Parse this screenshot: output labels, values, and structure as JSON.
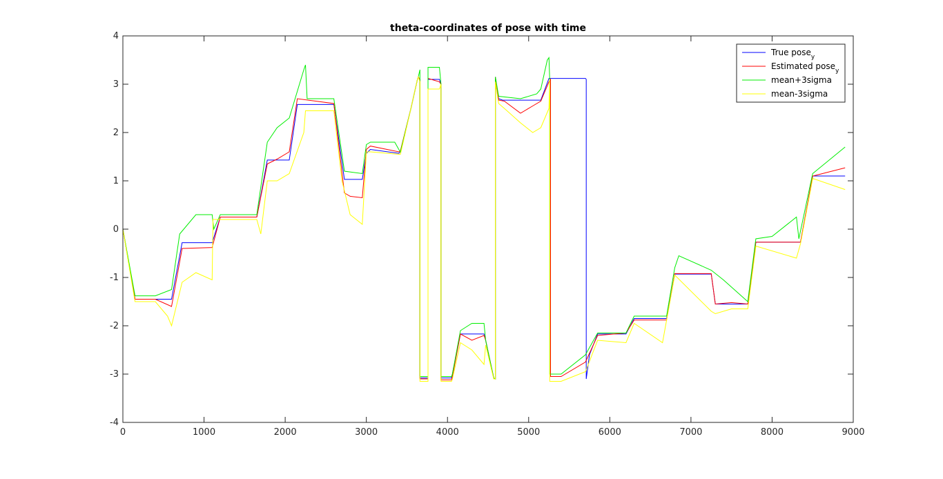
{
  "chart_data": {
    "type": "line",
    "title": "theta-coordinates of pose with time",
    "xlabel": "",
    "ylabel": "",
    "xlim": [
      0,
      9000
    ],
    "ylim": [
      -4,
      4
    ],
    "xticks": [
      0,
      1000,
      2000,
      3000,
      4000,
      5000,
      6000,
      7000,
      8000,
      9000
    ],
    "xtick_labels": [
      "0",
      "1000",
      "2000",
      "3000",
      "4000",
      "5000",
      "6000",
      "7000",
      "8000",
      "9000"
    ],
    "yticks": [
      -4,
      -3,
      -2,
      -1,
      0,
      1,
      2,
      3,
      4
    ],
    "ytick_labels": [
      "-4",
      "-3",
      "-2",
      "-1",
      "0",
      "1",
      "2",
      "3",
      "4"
    ],
    "grid": false,
    "legend_position": "top-right",
    "series": [
      {
        "name": "True pose",
        "name_sub": "y",
        "color": "#0000ff",
        "x": [
          0,
          150,
          600,
          730,
          1100,
          1200,
          1650,
          1780,
          2050,
          2150,
          2600,
          2730,
          2950,
          3000,
          3050,
          3400,
          3420,
          3550,
          3630,
          3640,
          3660,
          3660,
          3760,
          3760,
          3900,
          3920,
          3920,
          4050,
          4060,
          4160,
          4450,
          4470,
          4570,
          4590,
          4590,
          4630,
          4680,
          5150,
          5250,
          5700,
          5710,
          5710,
          5750,
          5850,
          6200,
          6300,
          6700,
          6800,
          7250,
          7300,
          7700,
          7800,
          8300,
          8350,
          8500,
          8550,
          8900
        ],
        "y": [
          0,
          -1.45,
          -1.45,
          -0.28,
          -0.28,
          0.25,
          0.25,
          1.43,
          1.43,
          2.58,
          2.58,
          1.03,
          1.03,
          1.57,
          1.65,
          1.57,
          1.6,
          2.5,
          3.1,
          3.15,
          3.1,
          -3.08,
          -3.08,
          3.1,
          3.1,
          3.0,
          -3.08,
          -3.08,
          -3.0,
          -2.17,
          -2.17,
          -2.3,
          -3.08,
          -3.1,
          3.15,
          2.7,
          2.67,
          2.67,
          3.12,
          3.12,
          3.1,
          -3.1,
          -2.6,
          -2.17,
          -2.17,
          -1.85,
          -1.85,
          -0.93,
          -0.93,
          -1.55,
          -1.55,
          -0.27,
          -0.27,
          -0.27,
          1.1,
          1.1,
          1.1
        ]
      },
      {
        "name": "Estimated pose",
        "name_sub": "y",
        "color": "#ff0000",
        "x": [
          0,
          150,
          400,
          600,
          730,
          1100,
          1200,
          1650,
          1780,
          1900,
          2050,
          2150,
          2600,
          2730,
          2800,
          2950,
          3000,
          3050,
          3400,
          3420,
          3550,
          3630,
          3640,
          3660,
          3660,
          3760,
          3760,
          3900,
          3920,
          3920,
          4050,
          4060,
          4160,
          4300,
          4450,
          4470,
          4570,
          4590,
          4590,
          4630,
          4700,
          4900,
          5050,
          5150,
          5250,
          5270,
          5270,
          5400,
          5700,
          5850,
          6200,
          6300,
          6700,
          6800,
          7250,
          7300,
          7500,
          7700,
          7800,
          8300,
          8350,
          8500,
          8550,
          8900
        ],
        "y": [
          0,
          -1.45,
          -1.45,
          -1.6,
          -0.4,
          -0.38,
          0.25,
          0.25,
          1.35,
          1.45,
          1.6,
          2.7,
          2.6,
          0.75,
          0.68,
          0.65,
          1.65,
          1.72,
          1.6,
          1.62,
          2.5,
          3.1,
          3.15,
          3.1,
          -3.1,
          -3.1,
          3.12,
          3.05,
          3.0,
          -3.12,
          -3.12,
          -3.05,
          -2.17,
          -2.3,
          -2.2,
          -2.3,
          -3.08,
          -3.1,
          3.15,
          2.67,
          2.65,
          2.4,
          2.55,
          2.65,
          3.05,
          3.1,
          -3.05,
          -3.05,
          -2.75,
          -2.2,
          -2.15,
          -1.88,
          -1.88,
          -0.92,
          -0.92,
          -1.55,
          -1.52,
          -1.55,
          -0.27,
          -0.27,
          -0.27,
          1.1,
          1.12,
          1.27
        ]
      },
      {
        "name": "mean+3sigma",
        "color": "#00ee00",
        "x": [
          0,
          150,
          400,
          600,
          700,
          900,
          1100,
          1120,
          1200,
          1650,
          1780,
          1900,
          2050,
          2230,
          2250,
          2270,
          2600,
          2730,
          2950,
          3000,
          3050,
          3350,
          3400,
          3420,
          3550,
          3630,
          3640,
          3660,
          3660,
          3760,
          3760,
          3900,
          3920,
          3920,
          4050,
          4060,
          4160,
          4300,
          4450,
          4470,
          4570,
          4590,
          4590,
          4630,
          4900,
          5100,
          5150,
          5230,
          5250,
          5260,
          5260,
          5400,
          5700,
          5850,
          6200,
          6300,
          6700,
          6800,
          6850,
          7250,
          7400,
          7700,
          7800,
          8000,
          8300,
          8330,
          8500,
          8900
        ],
        "y": [
          0,
          -1.38,
          -1.38,
          -1.25,
          -0.1,
          0.3,
          0.3,
          0,
          0.3,
          0.3,
          1.8,
          2.1,
          2.3,
          3.3,
          3.4,
          2.7,
          2.7,
          1.2,
          1.15,
          1.75,
          1.8,
          1.8,
          1.65,
          1.6,
          2.5,
          3.1,
          3.15,
          3.3,
          -3.05,
          -3.05,
          3.35,
          3.35,
          3.0,
          -3.05,
          -3.05,
          -3.0,
          -2.1,
          -1.95,
          -1.95,
          -2.3,
          -3.08,
          -3.1,
          3.15,
          2.75,
          2.7,
          2.8,
          2.9,
          3.5,
          3.55,
          3.1,
          -3.0,
          -3.0,
          -2.6,
          -2.15,
          -2.15,
          -1.8,
          -1.8,
          -0.8,
          -0.55,
          -0.85,
          -1.05,
          -1.5,
          -0.2,
          -0.15,
          0.25,
          -0.2,
          1.15,
          1.7
        ]
      },
      {
        "name": "mean-3sigma",
        "color": "#ffff00",
        "x": [
          0,
          150,
          400,
          550,
          600,
          730,
          900,
          1100,
          1110,
          1200,
          1650,
          1700,
          1780,
          1900,
          2050,
          2230,
          2250,
          2270,
          2600,
          2700,
          2800,
          2950,
          3000,
          3050,
          3400,
          3420,
          3550,
          3630,
          3640,
          3660,
          3660,
          3760,
          3760,
          3900,
          3920,
          3920,
          4050,
          4060,
          4160,
          4300,
          4450,
          4470,
          4570,
          4590,
          4590,
          4630,
          4700,
          4900,
          5050,
          5150,
          5250,
          5260,
          5260,
          5400,
          5700,
          5850,
          6200,
          6300,
          6650,
          6800,
          7250,
          7300,
          7500,
          7700,
          7800,
          8300,
          8350,
          8500,
          8900
        ],
        "y": [
          0,
          -1.5,
          -1.5,
          -1.8,
          -2.0,
          -1.1,
          -0.9,
          -1.05,
          0.2,
          0.2,
          0.2,
          -0.1,
          1.0,
          1.0,
          1.15,
          2.0,
          2.45,
          2.45,
          2.45,
          1.0,
          0.3,
          0.1,
          1.6,
          1.6,
          1.55,
          1.55,
          2.5,
          3.1,
          3.15,
          3.05,
          -3.15,
          -3.15,
          2.9,
          2.9,
          3.0,
          -3.15,
          -3.15,
          -3.1,
          -2.35,
          -2.5,
          -2.8,
          -2.4,
          -3.1,
          -3.1,
          3.05,
          2.6,
          2.5,
          2.2,
          2.0,
          2.1,
          2.5,
          3.1,
          -3.15,
          -3.15,
          -2.95,
          -2.3,
          -2.35,
          -1.95,
          -2.35,
          -0.95,
          -1.7,
          -1.75,
          -1.65,
          -1.65,
          -0.35,
          -0.6,
          -0.3,
          1.05,
          0.82
        ]
      }
    ]
  }
}
